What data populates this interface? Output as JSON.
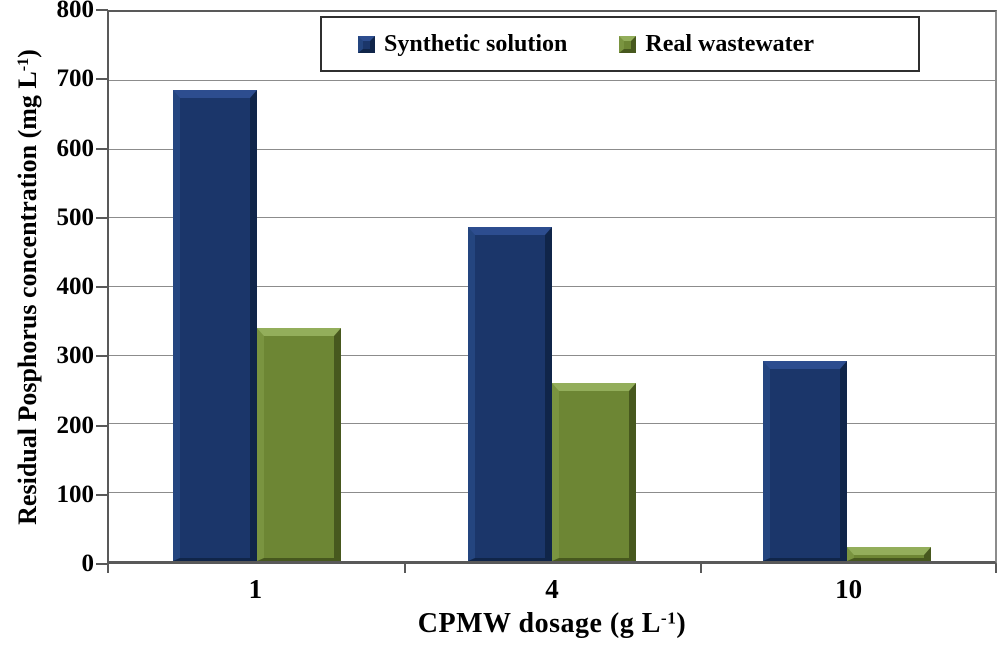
{
  "chart_data": {
    "type": "bar",
    "categories": [
      "1",
      "4",
      "10"
    ],
    "series": [
      {
        "name": "Synthetic solution",
        "values": [
          687,
          487,
          291
        ],
        "color": "#1b366a",
        "bevel_light": "#2d4d8f",
        "bevel_mid": "#24457f",
        "bevel_dark": "#102549"
      },
      {
        "name": "Real wastewater",
        "values": [
          340,
          260,
          20
        ],
        "color": "#6d8634",
        "bevel_light": "#93ae5b",
        "bevel_mid": "#7a9440",
        "bevel_dark": "#47581e"
      }
    ],
    "xlabel": {
      "text": "CPMW dosage (g L",
      "sup": "-1",
      "suffix": ")"
    },
    "ylabel": {
      "text": "Residual Posphorus concentration (mg L",
      "sup": "-1",
      "suffix": ")"
    },
    "ylim": [
      0,
      800
    ],
    "ytick_step": 100,
    "yticks": [
      0,
      100,
      200,
      300,
      400,
      500,
      600,
      700,
      800
    ],
    "grid": true,
    "gridline_color": "#8c8c8c",
    "axis_color": "#595959",
    "legend": {
      "position": "top-center",
      "border_color": "#2f2f2f",
      "background": "#ffffff"
    }
  }
}
